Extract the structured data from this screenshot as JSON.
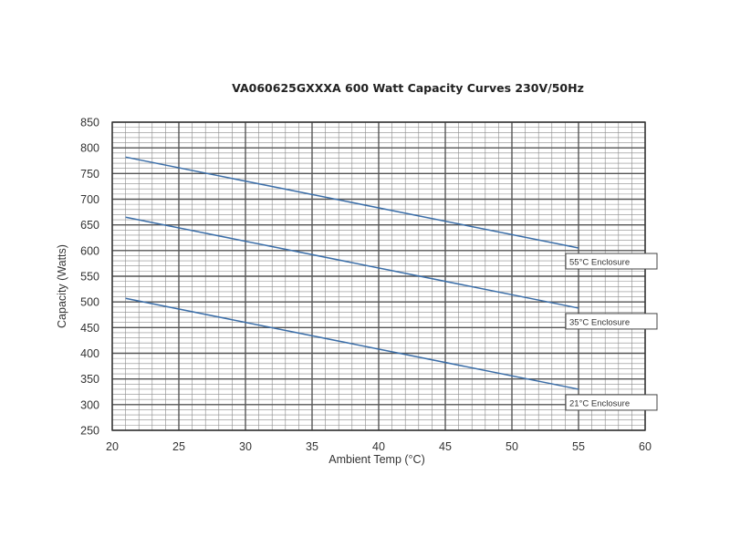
{
  "chart_data": {
    "type": "line",
    "title": "VA060625GXXXA 600 Watt Capacity Curves 230V/50Hz",
    "xlabel": "Ambient Temp (°C)",
    "ylabel": "Capacity (Watts)",
    "xlim": [
      20,
      60
    ],
    "ylim": [
      250,
      850
    ],
    "x_ticks": [
      20,
      25,
      30,
      35,
      40,
      45,
      50,
      55,
      60
    ],
    "y_ticks": [
      250,
      300,
      350,
      400,
      450,
      500,
      550,
      600,
      650,
      700,
      750,
      800,
      850
    ],
    "grid": true,
    "series": [
      {
        "name": "55°C Enclosure",
        "x": [
          21,
          55
        ],
        "values": [
          782,
          605
        ],
        "color": "#3b6ea8"
      },
      {
        "name": "35°C Enclosure",
        "x": [
          21,
          55
        ],
        "values": [
          665,
          488
        ],
        "color": "#3b6ea8"
      },
      {
        "name": "21°C Enclosure",
        "x": [
          21,
          55
        ],
        "values": [
          507,
          330
        ],
        "color": "#3b6ea8"
      }
    ]
  }
}
